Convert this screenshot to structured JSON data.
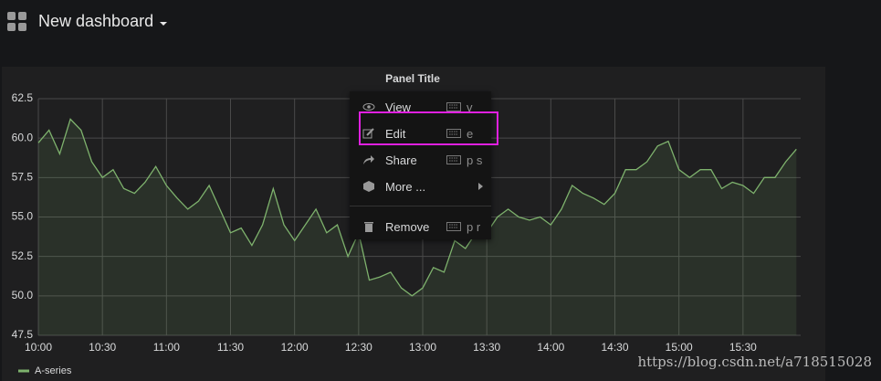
{
  "header": {
    "title": "New dashboard"
  },
  "chart_data": {
    "type": "line",
    "title": "Panel Title",
    "x": [
      "10:00",
      "10:05",
      "10:10",
      "10:15",
      "10:20",
      "10:25",
      "10:30",
      "10:35",
      "10:40",
      "10:45",
      "10:50",
      "10:55",
      "11:00",
      "11:05",
      "11:10",
      "11:15",
      "11:20",
      "11:25",
      "11:30",
      "11:35",
      "11:40",
      "11:45",
      "11:50",
      "11:55",
      "12:00",
      "12:05",
      "12:10",
      "12:15",
      "12:20",
      "12:25",
      "12:30",
      "12:35",
      "12:40",
      "12:45",
      "12:50",
      "12:55",
      "13:00",
      "13:05",
      "13:10",
      "13:15",
      "13:20",
      "13:25",
      "13:30",
      "13:35",
      "13:40",
      "13:45",
      "13:50",
      "13:55",
      "14:00",
      "14:05",
      "14:10",
      "14:15",
      "14:20",
      "14:25",
      "14:30",
      "14:35",
      "14:40",
      "14:45",
      "14:50",
      "14:55",
      "15:00",
      "15:05",
      "15:10",
      "15:15",
      "15:20",
      "15:25",
      "15:30",
      "15:35",
      "15:40",
      "15:45",
      "15:50",
      "15:55"
    ],
    "series": [
      {
        "name": "A-series",
        "color": "#7eb26d",
        "values": [
          59.7,
          60.5,
          59,
          61.2,
          60.5,
          58.5,
          57.5,
          58,
          56.8,
          56.5,
          57.2,
          58.2,
          57,
          56.2,
          55.5,
          56,
          57,
          55.5,
          54,
          54.3,
          53.2,
          54.5,
          56.8,
          54.5,
          53.5,
          54.5,
          55.5,
          54,
          54.5,
          52.5,
          54,
          51,
          51.2,
          51.5,
          50.5,
          50,
          50.5,
          51.8,
          51.5,
          53.5,
          53,
          54,
          54,
          55,
          55.5,
          55,
          54.8,
          55,
          54.5,
          55.5,
          57,
          56.5,
          56.2,
          55.8,
          56.5,
          58,
          58,
          58.5,
          59.5,
          59.8,
          58,
          57.5,
          58,
          58,
          56.8,
          57.2,
          57,
          56.5,
          57.5,
          57.5,
          58.5,
          59.3
        ]
      }
    ],
    "xlim": [
      "10:00",
      "15:57"
    ],
    "xticks": [
      "10:00",
      "10:30",
      "11:00",
      "11:30",
      "12:00",
      "12:30",
      "13:00",
      "13:30",
      "14:00",
      "14:30",
      "15:00",
      "15:30"
    ],
    "ylim": [
      47.5,
      62.5
    ],
    "yticks": [
      47.5,
      {
        "value": 50,
        "label": "50.0"
      },
      52.5,
      {
        "value": 55,
        "label": "55.0"
      },
      57.5,
      {
        "value": 60,
        "label": "60.0"
      },
      62.5
    ],
    "grid": true,
    "legend": "bottom-left"
  },
  "menu": {
    "items": [
      {
        "label": "View",
        "shortcut": "v"
      },
      {
        "label": "Edit",
        "shortcut": "e"
      },
      {
        "label": "Share",
        "shortcut": "p s"
      },
      {
        "label": "More ..."
      },
      {
        "label": "Remove",
        "shortcut": "p r"
      }
    ]
  },
  "watermark": "https://blog.csdn.net/a718515028"
}
